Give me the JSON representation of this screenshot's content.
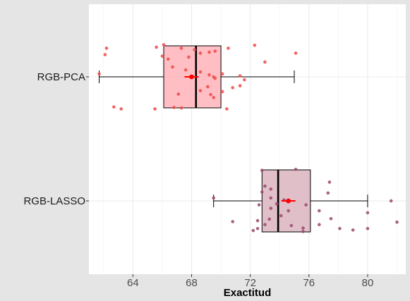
{
  "chart_data": {
    "type": "box",
    "title": "",
    "xlabel": "Exactitud",
    "ylabel": "",
    "xlim": [
      61,
      82.6
    ],
    "x_ticks": [
      64,
      68,
      72,
      76,
      80
    ],
    "x_tick_labels": [
      "64",
      "68",
      "72",
      "76",
      "80"
    ],
    "grid": true,
    "orientation": "horizontal",
    "categories": [
      "RGB-PCA",
      "RGB-LASSO"
    ],
    "series": [
      {
        "name": "RGB-PCA",
        "min": 61.7,
        "q1": 66.1,
        "median": 68.3,
        "q3": 70.0,
        "max": 75.0,
        "mean": 68.0,
        "box_color": "#ffb3b8",
        "point_color": "#f04b4b",
        "points": [
          [
            62.2,
            0.58
          ],
          [
            62.1,
            0.45
          ],
          [
            65.6,
            0.6
          ],
          [
            66.1,
            0.65
          ],
          [
            66.0,
            0.42
          ],
          [
            66.4,
            0.36
          ],
          [
            67.3,
            0.58
          ],
          [
            67.8,
            0.4
          ],
          [
            68.2,
            0.55
          ],
          [
            68.6,
            0.48
          ],
          [
            69.2,
            0.5
          ],
          [
            69.6,
            0.52
          ],
          [
            70.5,
            0.58
          ],
          [
            72.3,
            0.64
          ],
          [
            75.1,
            0.48
          ],
          [
            73.0,
            0.3
          ],
          [
            66.7,
            0.2
          ],
          [
            67.6,
            0.14
          ],
          [
            68.6,
            0.1
          ],
          [
            69.2,
            0.04
          ],
          [
            69.5,
            0.0
          ],
          [
            70.1,
            0.06
          ],
          [
            69.6,
            -0.03
          ],
          [
            71.3,
            0.02
          ],
          [
            71.6,
            -0.06
          ],
          [
            71.3,
            -0.18
          ],
          [
            70.8,
            -0.22
          ],
          [
            70.1,
            -0.3
          ],
          [
            69.3,
            -0.36
          ],
          [
            69.5,
            -0.42
          ],
          [
            61.7,
            0.06
          ],
          [
            62.7,
            -0.61
          ],
          [
            63.2,
            -0.65
          ],
          [
            65.5,
            -0.65
          ],
          [
            66.8,
            -0.62
          ],
          [
            67.3,
            -0.63
          ],
          [
            70.4,
            -0.65
          ],
          [
            67.1,
            -0.35
          ],
          [
            68.6,
            -0.28
          ],
          [
            69.1,
            -0.2
          ]
        ]
      },
      {
        "name": "RGB-LASSO",
        "min": 69.5,
        "q1": 72.8,
        "median": 73.9,
        "q3": 76.1,
        "max": 80.0,
        "mean": 74.6,
        "box_color": "#dcb4c0",
        "point_color": "#9b4a6e",
        "points": [
          [
            72.8,
            0.62
          ],
          [
            75.1,
            0.64
          ],
          [
            77.4,
            0.38
          ],
          [
            73.0,
            0.3
          ],
          [
            73.4,
            0.24
          ],
          [
            72.8,
            0.18
          ],
          [
            77.3,
            0.16
          ],
          [
            73.4,
            0.06
          ],
          [
            74.3,
            0.02
          ],
          [
            73.8,
            -0.06
          ],
          [
            74.6,
            -0.2
          ],
          [
            69.5,
            0.06
          ],
          [
            72.6,
            -0.08
          ],
          [
            73.4,
            -0.15
          ],
          [
            75.8,
            -0.08
          ],
          [
            76.7,
            -0.2
          ],
          [
            72.5,
            -0.4
          ],
          [
            73.0,
            -0.48
          ],
          [
            73.3,
            -0.37
          ],
          [
            72.5,
            -0.56
          ],
          [
            70.8,
            -0.42
          ],
          [
            72.2,
            -0.6
          ],
          [
            74.1,
            -0.3
          ],
          [
            74.8,
            -0.5
          ],
          [
            75.6,
            -0.55
          ],
          [
            75.6,
            -0.62
          ],
          [
            76.7,
            -0.48
          ],
          [
            77.5,
            -0.36
          ],
          [
            78.1,
            -0.56
          ],
          [
            79.0,
            -0.59
          ],
          [
            80.0,
            -0.24
          ],
          [
            80.0,
            -0.56
          ],
          [
            81.6,
            0.0
          ],
          [
            82.0,
            -0.43
          ]
        ]
      }
    ]
  }
}
